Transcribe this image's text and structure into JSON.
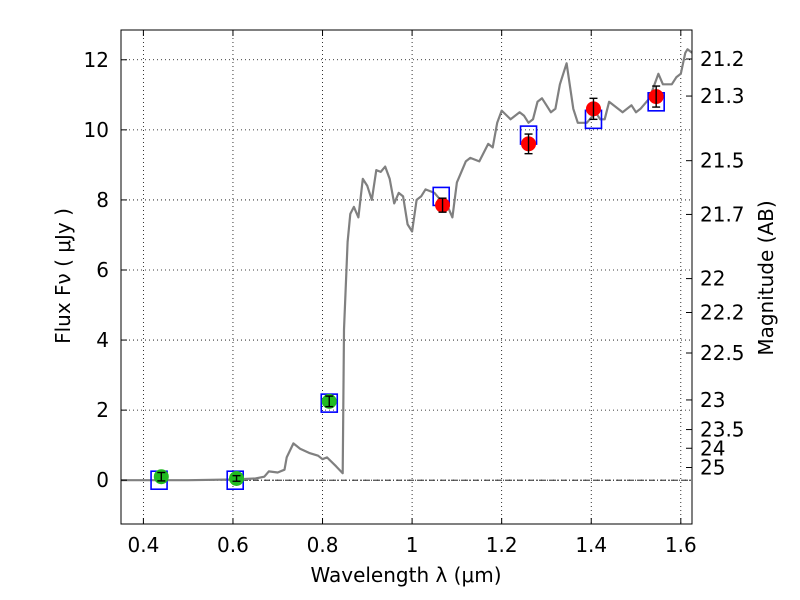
{
  "chart_data": {
    "type": "scatter",
    "xlabel": "Wavelength  λ (μm)",
    "ylabel": "Flux  Fν  ( μJy )",
    "ylabel_right": "Magnitude (AB)",
    "xlim": [
      0.35,
      1.625
    ],
    "ylim": [
      -1.25,
      12.85
    ],
    "grid": true,
    "x_ticks": [
      0.4,
      0.6,
      0.8,
      1.0,
      1.2,
      1.4,
      1.6
    ],
    "x_tick_labels": [
      "0.4",
      "0.6",
      "0.8",
      "1",
      "1.2",
      "1.4",
      "1.6"
    ],
    "y_ticks": [
      0,
      2,
      4,
      6,
      8,
      10,
      12
    ],
    "y_tick_labels": [
      "0",
      "2",
      "4",
      "6",
      "8",
      "10",
      "12"
    ],
    "mag_ticks": [
      21.2,
      21.3,
      21.5,
      21.7,
      22,
      22.2,
      22.5,
      23,
      23.5,
      24,
      25
    ],
    "mag_tick_labels": [
      "21.2",
      "21.3",
      "21.5",
      "21.7",
      "22",
      "22.2",
      "22.5",
      "23",
      "23.5",
      "24",
      "25"
    ],
    "model_spectrum": {
      "color": "#808080",
      "points": [
        [
          0.35,
          0.0
        ],
        [
          0.5,
          0.0
        ],
        [
          0.6,
          0.02
        ],
        [
          0.65,
          0.05
        ],
        [
          0.67,
          0.1
        ],
        [
          0.68,
          0.25
        ],
        [
          0.7,
          0.22
        ],
        [
          0.715,
          0.3
        ],
        [
          0.72,
          0.65
        ],
        [
          0.735,
          1.05
        ],
        [
          0.75,
          0.9
        ],
        [
          0.77,
          0.78
        ],
        [
          0.79,
          0.7
        ],
        [
          0.8,
          0.6
        ],
        [
          0.81,
          0.65
        ],
        [
          0.83,
          0.4
        ],
        [
          0.845,
          0.2
        ],
        [
          0.848,
          4.3
        ],
        [
          0.856,
          6.8
        ],
        [
          0.862,
          7.6
        ],
        [
          0.87,
          7.8
        ],
        [
          0.88,
          7.5
        ],
        [
          0.89,
          8.6
        ],
        [
          0.9,
          8.4
        ],
        [
          0.91,
          8.0
        ],
        [
          0.92,
          8.85
        ],
        [
          0.93,
          8.8
        ],
        [
          0.94,
          8.95
        ],
        [
          0.95,
          8.6
        ],
        [
          0.96,
          7.9
        ],
        [
          0.97,
          8.2
        ],
        [
          0.98,
          8.1
        ],
        [
          0.99,
          7.3
        ],
        [
          1.0,
          7.1
        ],
        [
          1.01,
          8.0
        ],
        [
          1.02,
          8.1
        ],
        [
          1.03,
          8.3
        ],
        [
          1.05,
          8.2
        ],
        [
          1.07,
          7.9
        ],
        [
          1.08,
          7.8
        ],
        [
          1.09,
          7.5
        ],
        [
          1.1,
          8.5
        ],
        [
          1.12,
          9.1
        ],
        [
          1.13,
          9.2
        ],
        [
          1.15,
          9.1
        ],
        [
          1.17,
          9.6
        ],
        [
          1.18,
          9.5
        ],
        [
          1.19,
          10.2
        ],
        [
          1.2,
          10.55
        ],
        [
          1.22,
          10.3
        ],
        [
          1.23,
          10.4
        ],
        [
          1.24,
          10.5
        ],
        [
          1.25,
          10.4
        ],
        [
          1.26,
          10.2
        ],
        [
          1.27,
          10.3
        ],
        [
          1.28,
          10.8
        ],
        [
          1.29,
          10.9
        ],
        [
          1.3,
          10.7
        ],
        [
          1.31,
          10.5
        ],
        [
          1.32,
          10.6
        ],
        [
          1.33,
          11.3
        ],
        [
          1.345,
          11.9
        ],
        [
          1.36,
          10.6
        ],
        [
          1.37,
          10.2
        ],
        [
          1.39,
          10.2
        ],
        [
          1.41,
          10.5
        ],
        [
          1.42,
          10.3
        ],
        [
          1.43,
          10.3
        ],
        [
          1.44,
          10.8
        ],
        [
          1.46,
          10.6
        ],
        [
          1.47,
          10.5
        ],
        [
          1.49,
          10.7
        ],
        [
          1.5,
          10.5
        ],
        [
          1.51,
          10.6
        ],
        [
          1.53,
          10.9
        ],
        [
          1.55,
          11.6
        ],
        [
          1.56,
          11.3
        ],
        [
          1.58,
          11.3
        ],
        [
          1.59,
          11.5
        ],
        [
          1.6,
          11.6
        ],
        [
          1.61,
          12.2
        ],
        [
          1.615,
          12.3
        ],
        [
          1.625,
          12.2
        ]
      ]
    },
    "series": [
      {
        "marker": "open-square",
        "color": "#0000ff",
        "x": [
          0.435,
          0.605,
          0.815,
          1.065,
          1.26,
          1.405,
          1.545
        ],
        "y": [
          0.0,
          0.0,
          2.2,
          8.1,
          9.85,
          10.3,
          10.8
        ]
      },
      {
        "marker": "circle",
        "color": "#22bb22",
        "x": [
          0.44,
          0.608,
          0.815
        ],
        "y": [
          0.1,
          0.05,
          2.25
        ],
        "err": [
          0.12,
          0.08,
          0.15
        ]
      },
      {
        "marker": "circle",
        "color": "#ff0000",
        "x": [
          1.068,
          1.26,
          1.405,
          1.545
        ],
        "y": [
          7.85,
          9.6,
          10.6,
          10.95
        ],
        "err": [
          0.2,
          0.28,
          0.3,
          0.3
        ]
      }
    ]
  }
}
